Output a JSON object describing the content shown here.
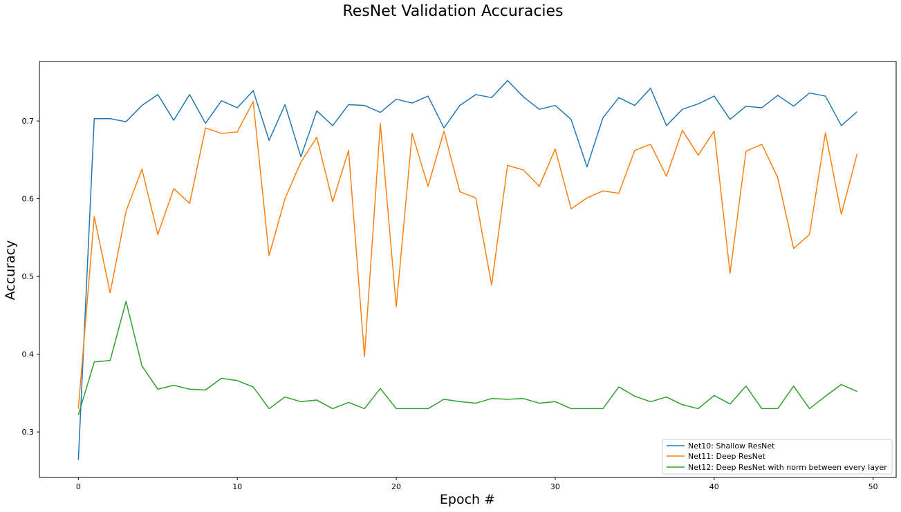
{
  "chart_data": {
    "type": "line",
    "title": "ResNet Validation Accuracies",
    "xlabel": "Epoch #",
    "ylabel": "Accuracy",
    "xlim": [
      -2.45,
      51.45
    ],
    "ylim": [
      0.2415,
      0.7765
    ],
    "xticks": [
      0,
      10,
      20,
      30,
      40,
      50
    ],
    "yticks": [
      0.3,
      0.4,
      0.5,
      0.6,
      0.7
    ],
    "grid": false,
    "legend_position": "lower-right",
    "x": [
      0,
      1,
      2,
      3,
      4,
      5,
      6,
      7,
      8,
      9,
      10,
      11,
      12,
      13,
      14,
      15,
      16,
      17,
      18,
      19,
      20,
      21,
      22,
      23,
      24,
      25,
      26,
      27,
      28,
      29,
      30,
      31,
      32,
      33,
      34,
      35,
      36,
      37,
      38,
      39,
      40,
      41,
      42,
      43,
      44,
      45,
      46,
      47,
      48,
      49
    ],
    "series": [
      {
        "name": "Net10: Shallow ResNet",
        "color": "#1f77b4",
        "values": [
          0.264,
          0.703,
          0.703,
          0.699,
          0.72,
          0.734,
          0.701,
          0.734,
          0.697,
          0.726,
          0.717,
          0.739,
          0.675,
          0.721,
          0.654,
          0.713,
          0.694,
          0.721,
          0.72,
          0.711,
          0.728,
          0.723,
          0.732,
          0.691,
          0.72,
          0.734,
          0.73,
          0.752,
          0.731,
          0.715,
          0.72,
          0.702,
          0.641,
          0.704,
          0.73,
          0.72,
          0.742,
          0.694,
          0.715,
          0.722,
          0.732,
          0.702,
          0.719,
          0.717,
          0.733,
          0.719,
          0.736,
          0.732,
          0.694,
          0.712
        ]
      },
      {
        "name": "Net11: Deep ResNet",
        "color": "#ff7f0e",
        "values": [
          0.33,
          0.577,
          0.479,
          0.584,
          0.638,
          0.554,
          0.613,
          0.594,
          0.691,
          0.684,
          0.686,
          0.725,
          0.527,
          0.6,
          0.647,
          0.679,
          0.596,
          0.662,
          0.397,
          0.697,
          0.461,
          0.684,
          0.616,
          0.687,
          0.609,
          0.601,
          0.489,
          0.643,
          0.637,
          0.616,
          0.664,
          0.587,
          0.601,
          0.61,
          0.607,
          0.662,
          0.67,
          0.629,
          0.688,
          0.656,
          0.687,
          0.504,
          0.661,
          0.67,
          0.627,
          0.536,
          0.554,
          0.685,
          0.58,
          0.658
        ]
      },
      {
        "name": "Net12: Deep ResNet with norm between every layer",
        "color": "#2ca02c",
        "values": [
          0.322,
          0.39,
          0.392,
          0.468,
          0.385,
          0.355,
          0.36,
          0.355,
          0.354,
          0.369,
          0.366,
          0.358,
          0.33,
          0.345,
          0.339,
          0.341,
          0.33,
          0.338,
          0.33,
          0.356,
          0.33,
          0.33,
          0.33,
          0.342,
          0.339,
          0.337,
          0.343,
          0.342,
          0.343,
          0.337,
          0.339,
          0.33,
          0.33,
          0.33,
          0.358,
          0.346,
          0.339,
          0.345,
          0.335,
          0.33,
          0.347,
          0.336,
          0.359,
          0.33,
          0.33,
          0.359,
          0.33,
          0.346,
          0.361,
          0.352
        ]
      }
    ]
  }
}
